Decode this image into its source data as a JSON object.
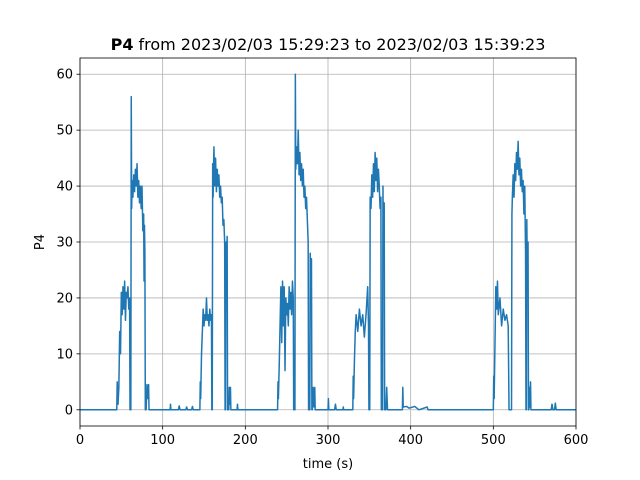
{
  "chart_data": {
    "type": "line",
    "title_bold": "P4",
    "title": "from 2023/02/03 15:29:23 to 2023/02/03 15:39:23",
    "xlabel": "time (s)",
    "ylabel": "P4",
    "color": "#1f77b4",
    "grid": true,
    "xlim": [
      0,
      600
    ],
    "xticks": [
      0,
      100,
      200,
      300,
      400,
      500,
      600
    ],
    "ylim": [
      -2.9,
      62.9
    ],
    "yticks": [
      0,
      10,
      20,
      30,
      40,
      50,
      60
    ],
    "x": [
      0,
      44.5,
      45,
      46,
      47,
      48,
      49,
      50,
      51,
      52,
      53,
      54,
      55,
      56,
      57,
      58,
      59,
      60,
      60.5,
      61.5,
      62,
      62.5,
      63,
      64,
      65,
      66,
      67,
      68,
      69,
      70,
      71,
      72,
      73,
      74,
      75,
      76,
      77,
      77.5,
      78,
      78.5,
      79,
      80,
      81,
      82,
      83,
      83.5,
      109,
      109.5,
      110,
      119,
      120,
      121,
      128,
      129,
      130,
      135,
      136,
      137,
      145,
      145.5,
      146,
      147,
      148,
      149,
      150,
      151,
      152,
      153,
      154,
      155,
      156,
      157,
      158,
      159,
      159.5,
      160,
      160.5,
      161,
      162,
      163,
      164,
      165,
      166,
      167,
      168,
      169,
      170,
      171,
      172,
      173,
      174,
      175,
      175.5,
      176,
      176.5,
      177,
      178,
      178.5,
      180,
      180.5,
      181,
      182,
      182.5,
      190,
      190.5,
      191,
      239,
      239.5,
      240,
      241,
      242,
      243,
      244,
      245,
      246,
      247,
      248,
      249,
      250,
      251,
      252,
      253,
      254,
      255,
      256,
      257,
      258,
      258.5,
      260,
      260.5,
      261,
      262,
      263,
      264,
      265,
      266,
      267,
      268,
      269,
      270,
      271,
      272,
      273,
      274,
      275,
      276,
      276.5,
      278,
      278.5,
      279,
      280,
      280.5,
      281,
      282,
      283,
      284,
      284.5,
      300,
      300.5,
      301,
      308,
      309,
      310,
      318,
      318.5,
      319,
      330,
      330.5,
      331,
      332,
      333,
      334,
      336,
      338,
      340,
      342,
      344,
      346,
      348,
      349,
      349.5,
      350.5,
      351,
      352,
      353,
      354,
      355,
      356,
      357,
      358,
      359,
      360,
      361,
      362,
      363,
      364,
      364.5,
      366,
      366.5,
      367,
      368,
      368.5,
      370,
      371,
      372,
      390,
      390.5,
      391,
      395,
      398,
      405,
      410,
      420,
      421,
      500,
      500.5,
      501,
      502,
      503,
      504,
      505,
      506,
      508,
      510,
      512,
      514,
      516,
      518,
      519,
      522,
      522.5,
      523,
      524,
      525,
      526,
      527,
      528,
      529,
      530,
      531,
      532,
      533,
      534,
      535,
      536,
      537,
      538,
      539,
      539.5,
      540,
      540.5,
      541,
      542,
      542.5,
      543,
      543.5,
      544,
      545,
      545.5,
      570,
      571,
      572,
      574,
      575,
      576,
      600
    ],
    "values": [
      0,
      0,
      5,
      1,
      4,
      14,
      10,
      21,
      17,
      22,
      18,
      23,
      16,
      21,
      20,
      22,
      18,
      20,
      0,
      0,
      56,
      36,
      41,
      38,
      42,
      39,
      43,
      40,
      44,
      38,
      41,
      37,
      40,
      36,
      40,
      32,
      35,
      23,
      33,
      28,
      0,
      0,
      4.5,
      2,
      4.5,
      0,
      0,
      1,
      0,
      0,
      0.7,
      0,
      0,
      0.5,
      0,
      0,
      0.6,
      0,
      0,
      5,
      2,
      10,
      14,
      18,
      15,
      17,
      16,
      20,
      16,
      17,
      15,
      18,
      16,
      17,
      0,
      0,
      44,
      38,
      47,
      40,
      45,
      39,
      43,
      40,
      42,
      38,
      40,
      37,
      38,
      33,
      34,
      30,
      0,
      0,
      30,
      25,
      31,
      0,
      0,
      4,
      1,
      4,
      0,
      0,
      1,
      0,
      0,
      5,
      2,
      8,
      15,
      22,
      12,
      23,
      15,
      22,
      7,
      20,
      17,
      19,
      15,
      22,
      18,
      21,
      17,
      23,
      20,
      0,
      0,
      60,
      43,
      47,
      44,
      50,
      42,
      46,
      41,
      44,
      40,
      43,
      38,
      40,
      36,
      38,
      34,
      30,
      0,
      0,
      28,
      24,
      27,
      0,
      0,
      4,
      0.5,
      4,
      0,
      0,
      2,
      0,
      0,
      1,
      0,
      0,
      0.5,
      0,
      0,
      6,
      2,
      9,
      14,
      17,
      14,
      18,
      15,
      17,
      13,
      17,
      22,
      15,
      0,
      0,
      38,
      36,
      42,
      38,
      44,
      39,
      46,
      41,
      45,
      39,
      43,
      40,
      36,
      38,
      0,
      0,
      40,
      30,
      37,
      0,
      0,
      4,
      0,
      0,
      4,
      0.5,
      0.6,
      0.3,
      0.6,
      0,
      0.5,
      0,
      0,
      6,
      2,
      12,
      22,
      18,
      23,
      17,
      20,
      15,
      18,
      16,
      17,
      15,
      0,
      0,
      35,
      38,
      42,
      38,
      44,
      41,
      46,
      43,
      48,
      42,
      45,
      40,
      43,
      39,
      41,
      35,
      40,
      28,
      0,
      0,
      34,
      26,
      30,
      0,
      0,
      4,
      0.5,
      5,
      0,
      0,
      1,
      0,
      0,
      1.2,
      0,
      0
    ]
  }
}
